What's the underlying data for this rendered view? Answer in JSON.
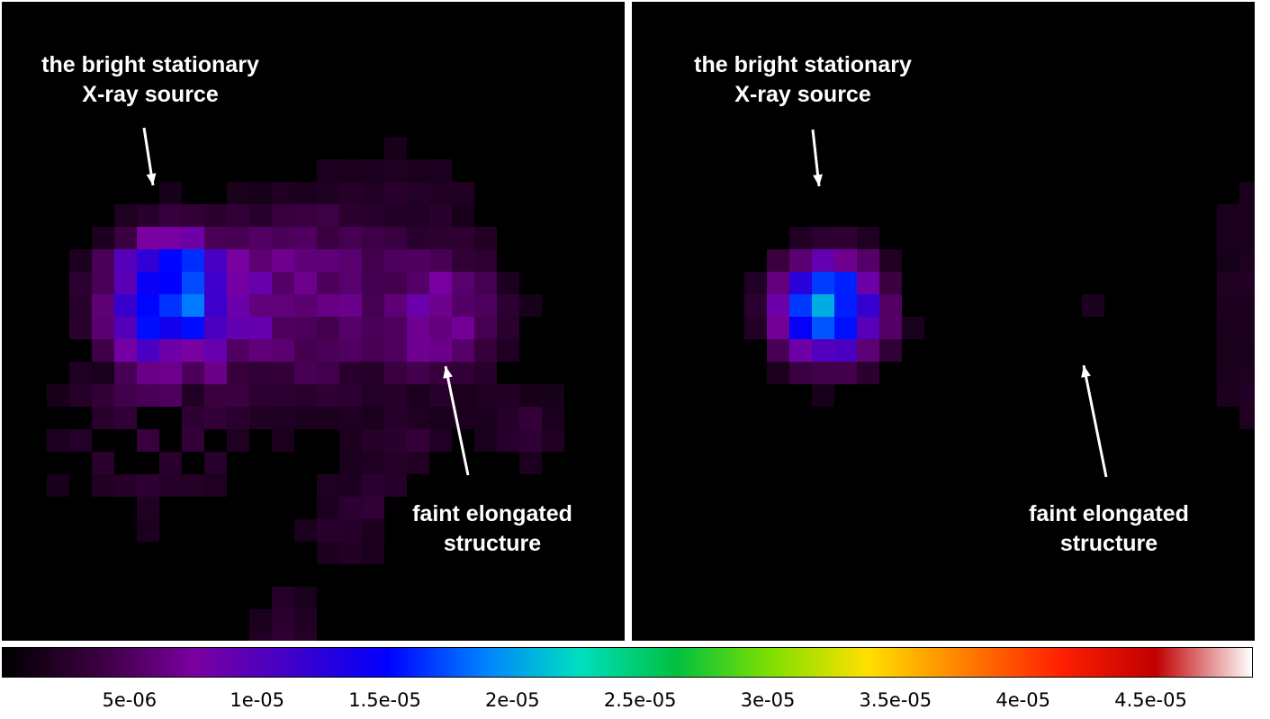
{
  "panels": [
    {
      "id": "left",
      "label_bright": "the bright stationary\nX-ray source",
      "label_faint": "faint elongated\nstructure"
    },
    {
      "id": "right",
      "label_bright": "the bright stationary\nX-ray source",
      "label_faint": "faint elongated\nstructure"
    }
  ],
  "colorbar": {
    "min": 0,
    "max": 4.9e-05,
    "ticks": [
      {
        "value": 5e-06,
        "label": "5e-06"
      },
      {
        "value": 1e-05,
        "label": "1e-05"
      },
      {
        "value": 1.5e-05,
        "label": "1.5e-05"
      },
      {
        "value": 2e-05,
        "label": "2e-05"
      },
      {
        "value": 2.5e-05,
        "label": "2.5e-05"
      },
      {
        "value": 3e-05,
        "label": "3e-05"
      },
      {
        "value": 3.5e-05,
        "label": "3.5e-05"
      },
      {
        "value": 4e-05,
        "label": "4e-05"
      },
      {
        "value": 4.5e-05,
        "label": "4.5e-05"
      }
    ],
    "colormap": [
      "#000000",
      "#3a0040",
      "#7a00a0",
      "#4000c8",
      "#0000ff",
      "#0080ff",
      "#00e0c0",
      "#00c040",
      "#80e000",
      "#ffe000",
      "#ff8000",
      "#ff2000",
      "#c00000",
      "#ffffff"
    ]
  }
}
